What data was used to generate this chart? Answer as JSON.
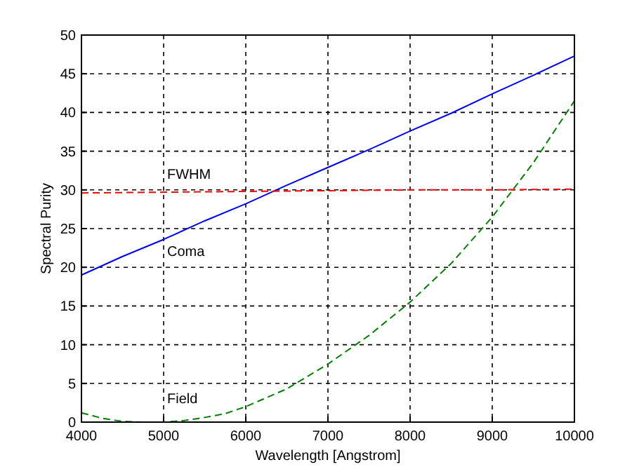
{
  "chart_data": {
    "type": "line",
    "xlabel": "Wavelength [Angstrom]",
    "ylabel": "Spectral Purity",
    "xlim": [
      4000,
      10000
    ],
    "ylim": [
      0,
      50
    ],
    "xticks": [
      4000,
      5000,
      6000,
      7000,
      8000,
      9000,
      10000
    ],
    "yticks": [
      0,
      5,
      10,
      15,
      20,
      25,
      30,
      35,
      40,
      45,
      50
    ],
    "grid": true,
    "series": [
      {
        "color": "#0000ff",
        "line_style": "solid",
        "x": [
          4000,
          4500,
          5000,
          5500,
          6000,
          6500,
          7000,
          7500,
          8000,
          8500,
          9000,
          9500,
          10000
        ],
        "values": [
          19,
          21.4,
          23.6,
          26,
          28.2,
          30.6,
          32.9,
          35.2,
          37.6,
          39.9,
          42.4,
          44.8,
          47.3
        ]
      },
      {
        "color": "#ff0000",
        "line_style": "dashed",
        "x": [
          4000,
          5000,
          6000,
          7000,
          8000,
          9000,
          10000
        ],
        "values": [
          29.6,
          29.7,
          29.8,
          29.9,
          30,
          30,
          30.1
        ]
      },
      {
        "color": "#008000",
        "line_style": "dashed",
        "x": [
          4000,
          4250,
          4500,
          4750,
          5000,
          5250,
          5500,
          5750,
          6000,
          6500,
          7000,
          7500,
          8000,
          8500,
          9000,
          9500,
          10000
        ],
        "values": [
          1.2,
          0.5,
          0.1,
          0,
          0,
          0.2,
          0.6,
          1.1,
          2,
          4.3,
          7.5,
          11.2,
          15.5,
          20.5,
          26.5,
          33.5,
          41.5
        ]
      }
    ],
    "annotations": [
      "FWHM",
      "Coma",
      "Field"
    ]
  }
}
